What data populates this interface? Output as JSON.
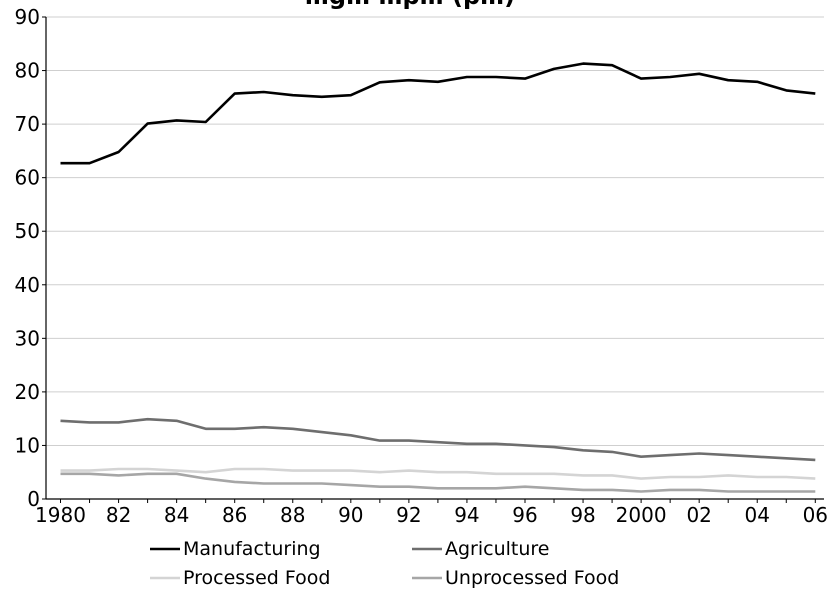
{
  "chart_data": {
    "type": "line",
    "title": "…g…  …p…  (p…)",
    "x": [
      1980,
      1981,
      1982,
      1983,
      1984,
      1985,
      1986,
      1987,
      1988,
      1989,
      1990,
      1991,
      1992,
      1993,
      1994,
      1995,
      1996,
      1997,
      1998,
      1999,
      2000,
      2001,
      2002,
      2003,
      2004,
      2005,
      2006
    ],
    "x_tick_labels": [
      "1980",
      "82",
      "84",
      "86",
      "88",
      "90",
      "92",
      "94",
      "96",
      "98",
      "2000",
      "02",
      "04",
      "06"
    ],
    "x_tick_values": [
      1980,
      1982,
      1984,
      1986,
      1988,
      1990,
      1992,
      1994,
      1996,
      1998,
      2000,
      2002,
      2004,
      2006
    ],
    "y_ticks": [
      0,
      10,
      20,
      30,
      40,
      50,
      60,
      70,
      80,
      90
    ],
    "ylim": [
      0,
      90
    ],
    "xlim": [
      1979.5,
      2006.3
    ],
    "grid": true,
    "legend_position": "bottom",
    "series": [
      {
        "name": "Manufacturing",
        "color": "#000000",
        "values": [
          62.7,
          62.7,
          64.8,
          70.1,
          70.7,
          70.4,
          75.7,
          76.0,
          75.4,
          75.1,
          75.4,
          77.8,
          78.2,
          77.9,
          78.8,
          78.8,
          78.5,
          80.3,
          81.3,
          81.0,
          78.5,
          78.8,
          79.4,
          78.2,
          77.9,
          76.3,
          75.7
        ]
      },
      {
        "name": "Agriculture",
        "color": "#6e6e6e",
        "values": [
          14.6,
          14.3,
          14.3,
          14.9,
          14.6,
          13.1,
          13.1,
          13.4,
          13.1,
          12.5,
          11.9,
          10.9,
          10.9,
          10.6,
          10.3,
          10.3,
          10.0,
          9.7,
          9.1,
          8.8,
          7.9,
          8.2,
          8.5,
          8.2,
          7.9,
          7.6,
          7.3
        ]
      },
      {
        "name": "Processed Food",
        "color": "#d4d4d4",
        "values": [
          5.3,
          5.3,
          5.6,
          5.6,
          5.3,
          5.0,
          5.6,
          5.6,
          5.3,
          5.3,
          5.3,
          5.0,
          5.3,
          5.0,
          5.0,
          4.7,
          4.7,
          4.7,
          4.4,
          4.4,
          3.8,
          4.1,
          4.1,
          4.4,
          4.1,
          4.1,
          3.8
        ]
      },
      {
        "name": "Unprocessed Food",
        "color": "#a6a6a6",
        "values": [
          4.7,
          4.7,
          4.4,
          4.7,
          4.7,
          3.8,
          3.2,
          2.9,
          2.9,
          2.9,
          2.6,
          2.3,
          2.3,
          2.0,
          2.0,
          2.0,
          2.3,
          2.0,
          1.7,
          1.7,
          1.4,
          1.7,
          1.7,
          1.4,
          1.4,
          1.4,
          1.4
        ]
      }
    ]
  }
}
